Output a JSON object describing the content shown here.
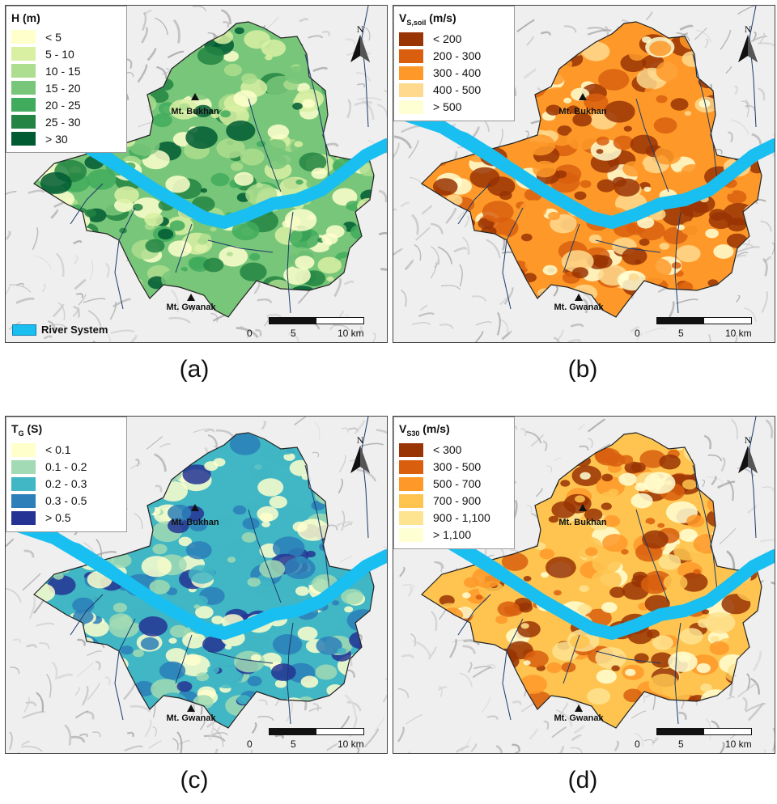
{
  "figure": {
    "labels": [
      "(a)",
      "(b)",
      "(c)",
      "(d)"
    ]
  },
  "common": {
    "peaks": [
      "Mt. Bukhan",
      "Mt. Gwanak"
    ],
    "river_legend": "River System",
    "scale": {
      "zero": "0",
      "mid": "5",
      "end": "10 km"
    },
    "north": "N",
    "colors": {
      "river": "#19bff0",
      "outline": "#222222"
    }
  },
  "panels": [
    {
      "id": "a",
      "legend_title": "H",
      "legend_title_sub": "",
      "legend_unit": "(m)",
      "classes": [
        {
          "label": "< 5",
          "color": "#ffffcc"
        },
        {
          "label": "5 - 10",
          "color": "#d9f0a3"
        },
        {
          "label": "10 - 15",
          "color": "#addd8e"
        },
        {
          "label": "15 - 20",
          "color": "#78c679"
        },
        {
          "label": "20 - 25",
          "color": "#41ab5d"
        },
        {
          "label": "25 - 30",
          "color": "#238443"
        },
        {
          "label": "> 30",
          "color": "#005a32"
        }
      ],
      "show_river_legend": true
    },
    {
      "id": "b",
      "legend_title": "V",
      "legend_title_sub": "S,soil",
      "legend_unit": "(m/s)",
      "classes": [
        {
          "label": "< 200",
          "color": "#993404"
        },
        {
          "label": "200 - 300",
          "color": "#d95f0e"
        },
        {
          "label": "300 - 400",
          "color": "#fe9929"
        },
        {
          "label": "400 - 500",
          "color": "#fed98e"
        },
        {
          "label": "> 500",
          "color": "#ffffd4"
        }
      ],
      "show_river_legend": false
    },
    {
      "id": "c",
      "legend_title": "T",
      "legend_title_sub": "G",
      "legend_unit": "(S)",
      "classes": [
        {
          "label": "< 0.1",
          "color": "#ffffcc"
        },
        {
          "label": "0.1 - 0.2",
          "color": "#a1dab4"
        },
        {
          "label": "0.2 - 0.3",
          "color": "#41b6c4"
        },
        {
          "label": "0.3 - 0.5",
          "color": "#2c7fb8"
        },
        {
          "label": "> 0.5",
          "color": "#253494"
        }
      ],
      "show_river_legend": false
    },
    {
      "id": "d",
      "legend_title": "V",
      "legend_title_sub": "S30",
      "legend_unit": "(m/s)",
      "classes": [
        {
          "label": "< 300",
          "color": "#993404"
        },
        {
          "label": "300 - 500",
          "color": "#d95f0e"
        },
        {
          "label": "500 - 700",
          "color": "#fe9929"
        },
        {
          "label": "700 - 900",
          "color": "#fec44f"
        },
        {
          "label": "900 - 1,100",
          "color": "#fee391"
        },
        {
          "label": "> 1,100",
          "color": "#ffffd4"
        }
      ],
      "show_river_legend": false
    }
  ]
}
